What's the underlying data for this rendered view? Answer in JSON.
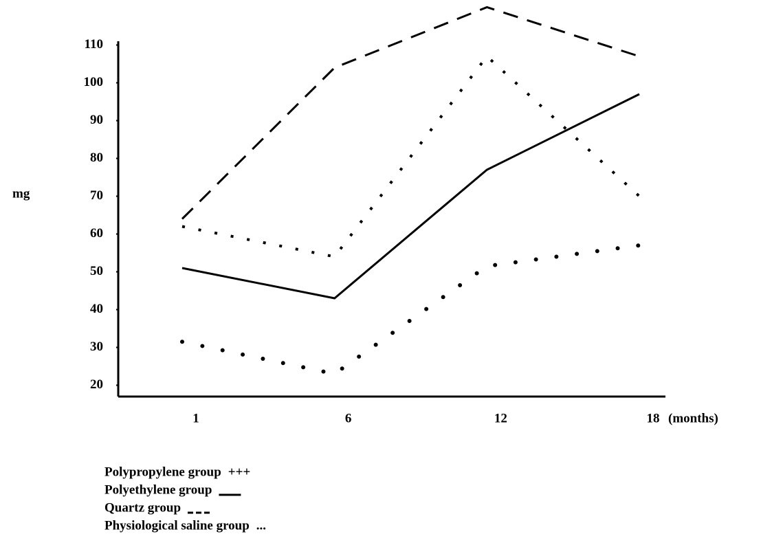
{
  "chart_data": {
    "type": "line",
    "y_label": "mg",
    "x_label": "(months)",
    "categories": [
      "1",
      "6",
      "12",
      "18"
    ],
    "series": [
      {
        "name": "Polypropylene group",
        "legend_symbol": "+++",
        "line_style": "crosses",
        "color": "#000000",
        "values": [
          62,
          54,
          107,
          70
        ]
      },
      {
        "name": "Polyethylene group",
        "line_style": "solid",
        "color": "#000000",
        "values": [
          51,
          43,
          77,
          97
        ]
      },
      {
        "name": "Quartz group",
        "line_style": "dashed",
        "color": "#000000",
        "values": [
          64,
          104,
          120,
          107
        ]
      },
      {
        "name": "Physiological saline group",
        "legend_symbol": "...",
        "line_style": "dotted",
        "color": "#000000",
        "values": [
          31.5,
          23,
          51.5,
          57
        ]
      }
    ],
    "ylim": [
      17,
      111
    ],
    "yticks": [
      20,
      30,
      40,
      50,
      60,
      70,
      80,
      90,
      100,
      110
    ],
    "grid": false
  }
}
